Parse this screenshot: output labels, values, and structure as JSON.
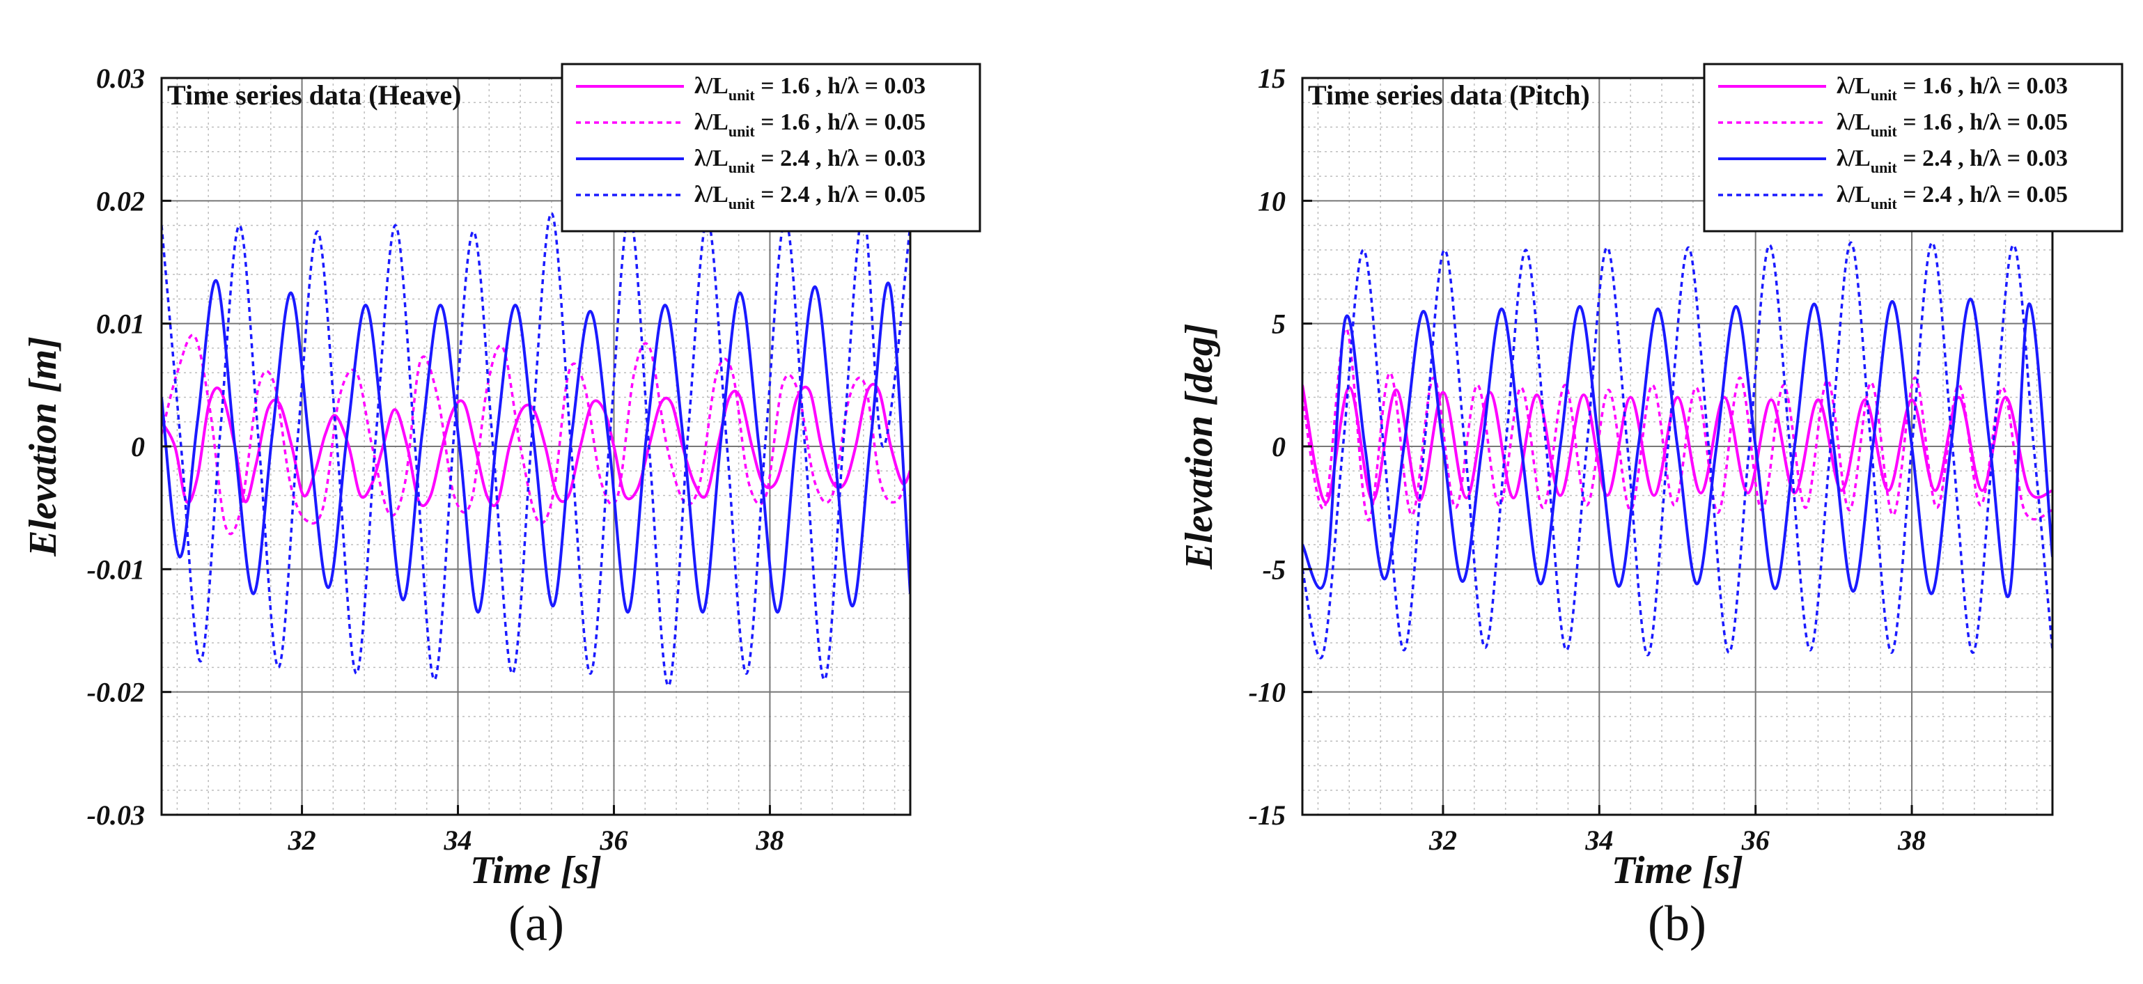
{
  "chart_data": [
    {
      "type": "line",
      "panel_label": "(a)",
      "title": "Time series data (Heave)",
      "xlabel": "Time [s]",
      "ylabel": "Elevation [m]",
      "xlim": [
        30.2,
        39.8
      ],
      "ylim": [
        -0.03,
        0.03
      ],
      "xticks": [
        32,
        34,
        36,
        38
      ],
      "xtick_labels": [
        "32",
        "34",
        "36",
        "38"
      ],
      "yticks": [
        -0.03,
        -0.02,
        -0.01,
        0,
        0.01,
        0.02,
        0.03
      ],
      "ytick_labels": [
        "-0.03",
        "-0.02",
        "-0.01",
        "0",
        "0.01",
        "0.02",
        "0.03"
      ],
      "grid": true,
      "legend_position": "top-right",
      "series": [
        {
          "name": "λ/Lunit = 1.6 , h/λ = 0.03",
          "legend": {
            "pre": "λ/L",
            "sub": "unit",
            "post": " = 1.6 , h/λ = 0.03"
          },
          "color": "#ff00ff",
          "dash": "solid",
          "x": [
            30.2,
            30.37,
            30.52,
            30.66,
            30.81,
            30.96,
            31.14,
            31.27,
            31.41,
            31.56,
            31.71,
            31.87,
            32.02,
            32.17,
            32.3,
            32.43,
            32.6,
            32.75,
            32.9,
            33.04,
            33.19,
            33.35,
            33.5,
            33.65,
            33.8,
            33.94,
            34.08,
            34.22,
            34.37,
            34.51,
            34.66,
            34.82,
            34.97,
            35.12,
            35.27,
            35.42,
            35.57,
            35.72,
            35.87,
            36.0,
            36.14,
            36.3,
            36.45,
            36.6,
            36.74,
            36.88,
            37.03,
            37.18,
            37.33,
            37.48,
            37.62,
            37.77,
            37.91,
            38.07,
            38.21,
            38.35,
            38.51,
            38.66,
            38.81,
            38.96,
            39.1,
            39.25,
            39.4,
            39.55,
            39.7,
            39.8
          ],
          "y": [
            0.002,
            0.0,
            -0.0045,
            -0.0025,
            0.0035,
            0.0045,
            0.0,
            -0.0045,
            -0.0015,
            0.003,
            0.0035,
            0.0,
            -0.004,
            -0.002,
            0.001,
            0.0025,
            0.0,
            -0.004,
            -0.003,
            0.0,
            0.003,
            0.0,
            -0.0045,
            -0.004,
            0.0,
            0.003,
            0.0035,
            0.0,
            -0.004,
            -0.0045,
            0.0,
            0.003,
            0.003,
            0.0,
            -0.004,
            -0.004,
            0.0,
            0.0035,
            0.003,
            0.0,
            -0.004,
            -0.0035,
            0.0,
            0.0035,
            0.0035,
            0.0,
            -0.003,
            -0.004,
            0.0,
            0.004,
            0.004,
            0.0,
            -0.003,
            -0.003,
            0.0,
            0.004,
            0.0045,
            0.0,
            -0.003,
            -0.003,
            0.0,
            0.0045,
            0.0045,
            0.0,
            -0.003,
            -0.002
          ]
        },
        {
          "name": "λ/Lunit = 1.6 , h/λ = 0.05",
          "legend": {
            "pre": "λ/L",
            "sub": "unit",
            "post": " = 1.6 , h/λ = 0.05"
          },
          "color": "#ff00ff",
          "dash": "dotted",
          "x": [
            30.2,
            30.4,
            30.62,
            30.82,
            31.02,
            31.22,
            31.45,
            31.65,
            31.85,
            32.05,
            32.27,
            32.48,
            32.7,
            32.9,
            33.12,
            33.32,
            33.52,
            33.74,
            33.95,
            34.17,
            34.38,
            34.58,
            34.8,
            35.02,
            35.22,
            35.42,
            35.62,
            35.84,
            36.05,
            36.26,
            36.46,
            36.68,
            36.9,
            37.1,
            37.32,
            37.52,
            37.73,
            37.95,
            38.16,
            38.36,
            38.58,
            38.8,
            39.02,
            39.22,
            39.42,
            39.62,
            39.8
          ],
          "y": [
            0.001,
            0.006,
            0.009,
            0.003,
            -0.0065,
            -0.005,
            0.005,
            0.005,
            -0.003,
            -0.006,
            -0.005,
            0.004,
            0.006,
            0.0,
            -0.0055,
            -0.003,
            0.007,
            0.004,
            -0.004,
            -0.0045,
            0.005,
            0.008,
            0.0,
            -0.006,
            -0.004,
            0.006,
            0.005,
            -0.003,
            -0.004,
            0.006,
            0.008,
            0.0,
            -0.0045,
            -0.003,
            0.006,
            0.006,
            -0.003,
            -0.004,
            0.005,
            0.0045,
            -0.003,
            -0.004,
            0.004,
            0.005,
            -0.003,
            -0.0045,
            -0.002
          ]
        },
        {
          "name": "λ/Lunit = 2.4 , h/λ = 0.03",
          "legend": {
            "pre": "λ/L",
            "sub": "unit",
            "post": " = 2.4 , h/λ = 0.03"
          },
          "color": "#1a1aff",
          "dash": "solid",
          "x": [
            30.2,
            30.43,
            30.66,
            30.9,
            31.14,
            31.38,
            31.62,
            31.86,
            32.1,
            32.34,
            32.58,
            32.82,
            33.06,
            33.3,
            33.54,
            33.78,
            34.02,
            34.26,
            34.5,
            34.74,
            34.98,
            35.22,
            35.46,
            35.7,
            35.94,
            36.18,
            36.42,
            36.66,
            36.9,
            37.14,
            37.38,
            37.62,
            37.86,
            38.1,
            38.34,
            38.58,
            38.82,
            39.06,
            39.3,
            39.54,
            39.8
          ],
          "y": [
            0.004,
            -0.009,
            0.002,
            0.0135,
            0.0,
            -0.012,
            0.001,
            0.0125,
            0.0,
            -0.0115,
            0.001,
            0.0115,
            0.0,
            -0.0125,
            0.001,
            0.0115,
            0.0,
            -0.0135,
            0.001,
            0.0115,
            0.0,
            -0.013,
            0.001,
            0.011,
            0.0,
            -0.0135,
            0.001,
            0.0115,
            0.0,
            -0.0135,
            0.001,
            0.0125,
            0.0,
            -0.0135,
            0.001,
            0.013,
            0.0,
            -0.013,
            0.001,
            0.013,
            -0.012
          ]
        },
        {
          "name": "λ/Lunit = 2.4 , h/λ = 0.05",
          "legend": {
            "pre": "λ/L",
            "sub": "unit",
            "post": " = 2.4 , h/λ = 0.05"
          },
          "color": "#1a1aff",
          "dash": "dotted",
          "x": [
            30.2,
            30.45,
            30.7,
            30.95,
            31.2,
            31.45,
            31.7,
            31.95,
            32.2,
            32.45,
            32.7,
            32.95,
            33.2,
            33.45,
            33.7,
            33.95,
            34.2,
            34.45,
            34.7,
            34.95,
            35.2,
            35.45,
            35.7,
            35.95,
            36.2,
            36.45,
            36.7,
            36.95,
            37.2,
            37.45,
            37.7,
            37.95,
            38.2,
            38.45,
            38.7,
            38.95,
            39.2,
            39.45,
            39.8
          ],
          "y": [
            0.018,
            0.0,
            -0.0175,
            0.001,
            0.018,
            0.0,
            -0.018,
            0.001,
            0.0175,
            0.0,
            -0.0185,
            0.001,
            0.018,
            0.0,
            -0.019,
            0.001,
            0.0175,
            0.0,
            -0.0185,
            0.001,
            0.019,
            0.0,
            -0.0185,
            0.001,
            0.019,
            0.0,
            -0.0195,
            0.001,
            0.0185,
            0.0,
            -0.0185,
            0.001,
            0.0185,
            0.0,
            -0.019,
            0.001,
            0.019,
            0.0,
            0.018
          ]
        }
      ]
    },
    {
      "type": "line",
      "panel_label": "(b)",
      "title": "Time series data (Pitch)",
      "xlabel": "Time [s]",
      "ylabel": "Elevation [deg]",
      "xlim": [
        30.2,
        39.8
      ],
      "ylim": [
        -15,
        15
      ],
      "xticks": [
        32,
        34,
        36,
        38
      ],
      "xtick_labels": [
        "32",
        "34",
        "36",
        "38"
      ],
      "yticks": [
        -15,
        -10,
        -5,
        0,
        5,
        10,
        15
      ],
      "ytick_labels": [
        "-15",
        "-10",
        "-5",
        "0",
        "5",
        "10",
        "15"
      ],
      "grid": true,
      "legend_position": "top-right",
      "series": [
        {
          "name": "λ/Lunit = 1.6 , h/λ = 0.03",
          "legend": {
            "pre": "λ/L",
            "sub": "unit",
            "post": " = 1.6 , h/λ = 0.03"
          },
          "color": "#ff00ff",
          "dash": "solid",
          "x": [
            30.2,
            30.5,
            30.8,
            31.1,
            31.4,
            31.7,
            32.0,
            32.3,
            32.6,
            32.9,
            33.2,
            33.5,
            33.8,
            34.1,
            34.4,
            34.7,
            35.0,
            35.3,
            35.6,
            35.9,
            36.2,
            36.5,
            36.8,
            37.1,
            37.4,
            37.7,
            38.0,
            38.3,
            38.6,
            38.9,
            39.2,
            39.5,
            39.8
          ],
          "y": [
            2.5,
            -2.3,
            2.4,
            -2.2,
            2.3,
            -2.2,
            2.2,
            -2.1,
            2.2,
            -2.1,
            2.1,
            -2.0,
            2.1,
            -2.0,
            2.0,
            -2.0,
            2.0,
            -1.9,
            2.0,
            -1.9,
            1.9,
            -1.9,
            1.9,
            -1.8,
            1.9,
            -1.8,
            1.9,
            -1.8,
            2.0,
            -1.8,
            2.0,
            -1.8,
            -1.8
          ]
        },
        {
          "name": "λ/Lunit = 1.6 , h/λ = 0.05",
          "legend": {
            "pre": "λ/L",
            "sub": "unit",
            "post": " = 1.6 , h/λ = 0.05"
          },
          "color": "#ff00ff",
          "dash": "dotted",
          "x": [
            30.2,
            30.48,
            30.76,
            31.04,
            31.32,
            31.6,
            31.88,
            32.16,
            32.44,
            32.72,
            33.0,
            33.28,
            33.56,
            33.84,
            34.12,
            34.4,
            34.68,
            34.96,
            35.24,
            35.52,
            35.8,
            36.08,
            36.36,
            36.64,
            36.92,
            37.2,
            37.48,
            37.76,
            38.04,
            38.32,
            38.6,
            38.88,
            39.16,
            39.44,
            39.8
          ],
          "y": [
            2.0,
            -2.5,
            4.8,
            -3.0,
            3.0,
            -2.8,
            2.8,
            -2.5,
            2.5,
            -2.4,
            2.4,
            -2.5,
            2.5,
            -2.4,
            2.3,
            -2.6,
            2.5,
            -2.4,
            2.4,
            -2.7,
            2.8,
            -2.6,
            2.5,
            -2.5,
            2.7,
            -2.6,
            2.6,
            -2.8,
            2.8,
            -2.5,
            2.5,
            -2.4,
            2.4,
            -2.6,
            -2.6
          ]
        },
        {
          "name": "λ/Lunit = 2.4 , h/λ = 0.03",
          "legend": {
            "pre": "λ/L",
            "sub": "unit",
            "post": " = 2.4 , h/λ = 0.03"
          },
          "color": "#1a1aff",
          "dash": "solid",
          "x": [
            30.2,
            30.5,
            30.75,
            31.0,
            31.25,
            31.5,
            31.75,
            32.0,
            32.25,
            32.5,
            32.75,
            33.0,
            33.25,
            33.5,
            33.75,
            34.0,
            34.25,
            34.5,
            34.75,
            35.0,
            35.25,
            35.5,
            35.75,
            36.0,
            36.25,
            36.5,
            36.75,
            37.0,
            37.25,
            37.5,
            37.75,
            38.0,
            38.25,
            38.5,
            38.75,
            39.0,
            39.25,
            39.5,
            39.8
          ],
          "y": [
            -4.0,
            -5.3,
            5.2,
            0.0,
            -5.4,
            0.0,
            5.5,
            0.0,
            -5.5,
            0.0,
            5.6,
            0.0,
            -5.6,
            0.0,
            5.7,
            0.0,
            -5.7,
            0.0,
            5.6,
            0.0,
            -5.6,
            0.0,
            5.7,
            0.0,
            -5.8,
            0.0,
            5.8,
            0.0,
            -5.9,
            0.0,
            5.9,
            0.0,
            -6.0,
            0.0,
            6.0,
            0.0,
            -6.0,
            5.8,
            -4.5
          ]
        },
        {
          "name": "λ/Lunit = 2.4 , h/λ = 0.05",
          "legend": {
            "pre": "λ/L",
            "sub": "unit",
            "post": " = 2.4 , h/λ = 0.05"
          },
          "color": "#1a1aff",
          "dash": "dotted",
          "x": [
            30.2,
            30.46,
            30.72,
            30.98,
            31.24,
            31.5,
            31.76,
            32.02,
            32.28,
            32.54,
            32.8,
            33.06,
            33.32,
            33.58,
            33.84,
            34.1,
            34.36,
            34.62,
            34.88,
            35.14,
            35.4,
            35.66,
            35.92,
            36.18,
            36.44,
            36.7,
            36.96,
            37.22,
            37.48,
            37.74,
            38.0,
            38.26,
            38.52,
            38.78,
            39.04,
            39.3,
            39.56,
            39.8
          ],
          "y": [
            -5.0,
            -8.5,
            0.0,
            8.0,
            0.0,
            -8.3,
            0.0,
            8.0,
            0.0,
            -8.2,
            0.0,
            8.0,
            0.0,
            -8.3,
            0.0,
            8.1,
            0.0,
            -8.5,
            0.0,
            8.1,
            0.0,
            -8.4,
            0.0,
            8.2,
            0.0,
            -8.3,
            0.0,
            8.3,
            0.0,
            -8.4,
            0.0,
            8.3,
            0.0,
            -8.4,
            0.0,
            8.2,
            0.0,
            -8.3
          ]
        }
      ]
    }
  ]
}
